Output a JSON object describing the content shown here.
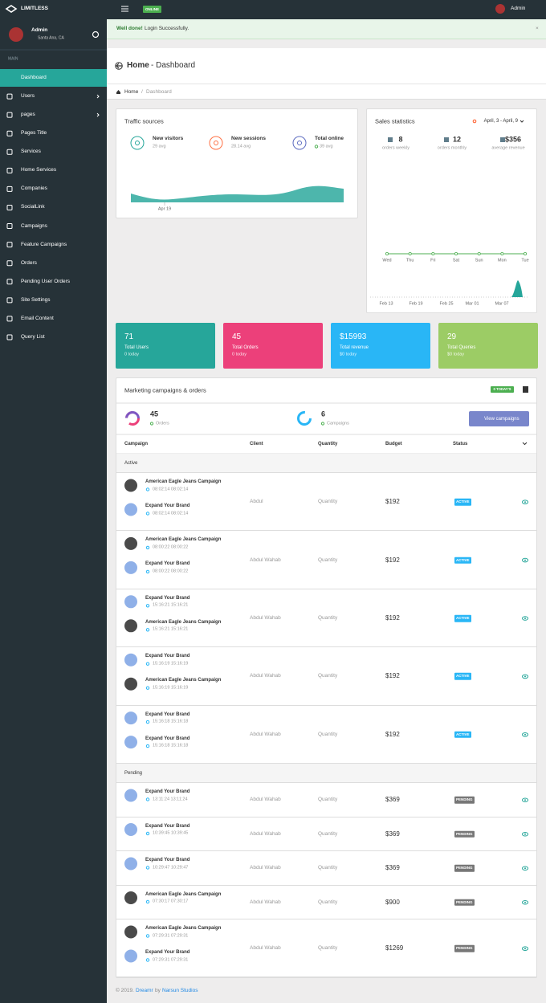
{
  "navbar": {
    "brand": "LIMITLESS",
    "status": "ONLINE",
    "user": "Admin"
  },
  "sidebar": {
    "user": "Admin",
    "location": "Santa Ana, CA",
    "section": "MAIN",
    "menu": [
      {
        "label": "Dashboard",
        "active": true
      },
      {
        "label": "Users",
        "submenu": true
      },
      {
        "label": "pages",
        "submenu": true
      },
      {
        "label": "Pages Title"
      },
      {
        "label": "Services"
      },
      {
        "label": "Home Services"
      },
      {
        "label": "Companies"
      },
      {
        "label": "SocialLink"
      },
      {
        "label": "Campaigns"
      },
      {
        "label": "Feature Campaigns"
      },
      {
        "label": "Orders"
      },
      {
        "label": "Pending User Orders"
      },
      {
        "label": "Site Settings"
      },
      {
        "label": "Email Content"
      },
      {
        "label": "Query List"
      }
    ]
  },
  "alert": {
    "strong": "Well done!",
    "text": "Login Successfully.",
    "close": "×"
  },
  "page_header": {
    "title": "Home",
    "subtitle": "- Dashboard",
    "breadcrumb": [
      "Home",
      "Dashboard"
    ],
    "separator": "/"
  },
  "traffic": {
    "title": "Traffic sources",
    "stats": [
      {
        "label": "New visitors",
        "value": "29 avg",
        "color": "#26a69a"
      },
      {
        "label": "New sessions",
        "value": "28.14 avg",
        "color": "#ff7043"
      },
      {
        "label": "Total online",
        "value": "39 avg",
        "color": "#5c6bc0"
      }
    ],
    "x_label": "Apr 19"
  },
  "sales": {
    "title": "Sales statistics",
    "range": "April, 3 - April, 9",
    "stats": [
      {
        "value": "8",
        "label": "orders weekly"
      },
      {
        "value": "12",
        "label": "orders monthly"
      },
      {
        "value": "$356",
        "label": "average revenue"
      }
    ],
    "days": [
      "Wed",
      "Thu",
      "Fri",
      "Sat",
      "Sun",
      "Mon",
      "Tue"
    ],
    "dates": [
      "Feb 13",
      "Feb 19",
      "Feb 25",
      "Mar 01",
      "Mar 07"
    ]
  },
  "tiles": [
    {
      "value": "71",
      "label": "Total Users",
      "sub": "0 today",
      "color": "#26a69a"
    },
    {
      "value": "45",
      "label": "Total Orders",
      "sub": "0 today",
      "color": "#ec407a"
    },
    {
      "value": "$15993",
      "label": "Total revenue",
      "sub": "$0 today",
      "color": "#29b6f6"
    },
    {
      "value": "29",
      "label": "Total Queries",
      "sub": "$0 today",
      "color": "#9ccc65"
    }
  ],
  "marketing": {
    "title": "Marketing campaigns & orders",
    "badge": "0 TODAY'S",
    "summary": [
      {
        "value": "45",
        "label": "Orders"
      },
      {
        "value": "6",
        "label": "Campaigns"
      }
    ],
    "button": "View campaigns",
    "columns": [
      "Campaign",
      "Client",
      "Quantity",
      "Budget",
      "Status"
    ],
    "groups": [
      {
        "name": "Active",
        "rows": [
          {
            "items": [
              {
                "name": "American Eagle Jeans Campaign",
                "time": "08:02:14 08:02:14",
                "avatar_color": "#4a4a4a"
              },
              {
                "name": "Expand Your Brand",
                "time": "08:02:14 08:02:14",
                "avatar_color": "#8fb0e8"
              }
            ],
            "client": "Abdul",
            "quantity": "Quantity",
            "budget": "$192",
            "status": "ACTIVE",
            "status_color": "#29b6f6"
          },
          {
            "items": [
              {
                "name": "American Eagle Jeans Campaign",
                "time": "08:00:22 08:00:22",
                "avatar_color": "#4a4a4a"
              },
              {
                "name": "Expand Your Brand",
                "time": "08:00:22 08:00:22",
                "avatar_color": "#8fb0e8"
              }
            ],
            "client": "Abdul Wahab",
            "quantity": "Quantity",
            "budget": "$192",
            "status": "ACTIVE",
            "status_color": "#29b6f6"
          },
          {
            "items": [
              {
                "name": "Expand Your Brand",
                "time": "15:16:21 15:16:21",
                "avatar_color": "#8fb0e8"
              },
              {
                "name": "American Eagle Jeans Campaign",
                "time": "15:16:21 15:16:21",
                "avatar_color": "#4a4a4a"
              }
            ],
            "client": "Abdul Wahab",
            "quantity": "Quantity",
            "budget": "$192",
            "status": "ACTIVE",
            "status_color": "#29b6f6"
          },
          {
            "items": [
              {
                "name": "Expand Your Brand",
                "time": "15:16:19 15:16:19",
                "avatar_color": "#8fb0e8"
              },
              {
                "name": "American Eagle Jeans Campaign",
                "time": "15:16:19 15:16:19",
                "avatar_color": "#4a4a4a"
              }
            ],
            "client": "Abdul Wahab",
            "quantity": "Quantity",
            "budget": "$192",
            "status": "ACTIVE",
            "status_color": "#29b6f6"
          },
          {
            "items": [
              {
                "name": "Expand Your Brand",
                "time": "15:16:18 15:16:18",
                "avatar_color": "#8fb0e8"
              },
              {
                "name": "Expand Your Brand",
                "time": "15:16:18 15:16:18",
                "avatar_color": "#8fb0e8"
              }
            ],
            "client": "Abdul Wahab",
            "quantity": "Quantity",
            "budget": "$192",
            "status": "ACTIVE",
            "status_color": "#29b6f6"
          }
        ]
      },
      {
        "name": "Pending",
        "rows": [
          {
            "items": [
              {
                "name": "Expand Your Brand",
                "time": "13:11:24 13:11:24",
                "avatar_color": "#8fb0e8"
              }
            ],
            "client": "Abdul Wahab",
            "quantity": "Quantity",
            "budget": "$369",
            "status": "PENDING",
            "status_color": "#777777"
          },
          {
            "items": [
              {
                "name": "Expand Your Brand",
                "time": "10:39:45 10:39:45",
                "avatar_color": "#8fb0e8"
              }
            ],
            "client": "Abdul Wahab",
            "quantity": "Quantity",
            "budget": "$369",
            "status": "PENDING",
            "status_color": "#777777"
          },
          {
            "items": [
              {
                "name": "Expand Your Brand",
                "time": "10:29:47 10:29:47",
                "avatar_color": "#8fb0e8"
              }
            ],
            "client": "Abdul Wahab",
            "quantity": "Quantity",
            "budget": "$369",
            "status": "PENDING",
            "status_color": "#777777"
          },
          {
            "items": [
              {
                "name": "American Eagle Jeans Campaign",
                "time": "07:30:17 07:30:17",
                "avatar_color": "#4a4a4a"
              }
            ],
            "client": "Abdul Wahab",
            "quantity": "Quantity",
            "budget": "$900",
            "status": "PENDING",
            "status_color": "#777777"
          },
          {
            "items": [
              {
                "name": "American Eagle Jeans Campaign",
                "time": "07:29:31 07:29:31",
                "avatar_color": "#4a4a4a"
              },
              {
                "name": "Expand Your Brand",
                "time": "07:29:31 07:29:31",
                "avatar_color": "#8fb0e8"
              }
            ],
            "client": "Abdul Wahab",
            "quantity": "Quantity",
            "budget": "$1269",
            "status": "PENDING",
            "status_color": "#777777"
          }
        ]
      }
    ]
  },
  "footer": {
    "copyright": "© 2019.",
    "brand": "Dreamr",
    "by": "by",
    "company": "Narsun Studios"
  }
}
